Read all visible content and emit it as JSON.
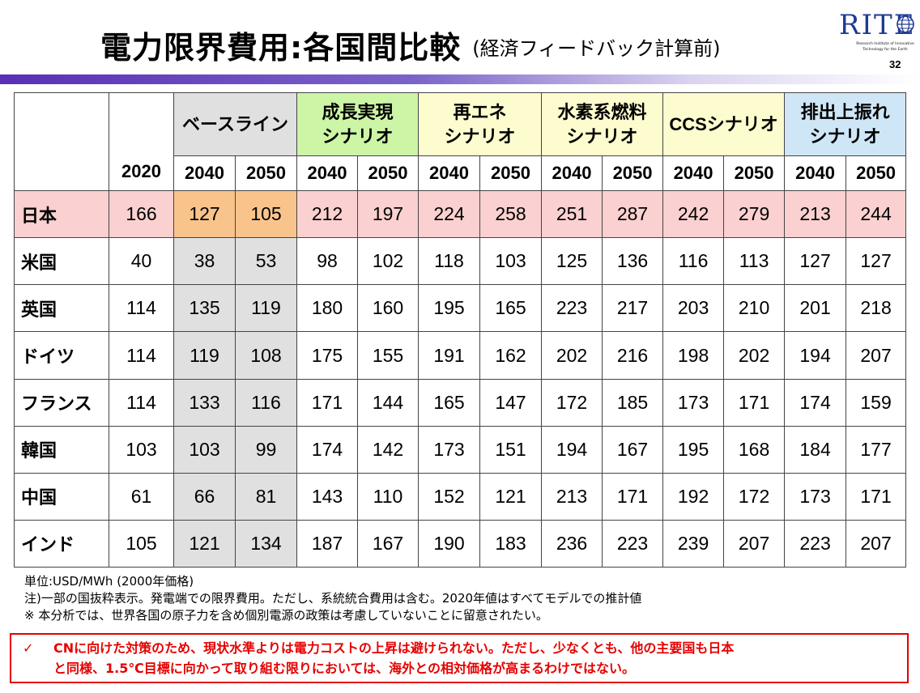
{
  "header": {
    "title": "電力限界費用:各国間比較",
    "subtitle": "(経済フィードバック計算前)",
    "logo_text": "RITE",
    "logo_lines": [
      "Research Institute of Innovative",
      "Technology for the Earth"
    ],
    "page_number": "32"
  },
  "table": {
    "year_2020": "2020",
    "scenarios": [
      {
        "label": "ベースライン",
        "color": "#e0e0e0"
      },
      {
        "label": "成長実現\nシナリオ",
        "color": "#ccf5a6"
      },
      {
        "label": "再エネ\nシナリオ",
        "color": "#fdfcce"
      },
      {
        "label": "水素系燃料\nシナリオ",
        "color": "#fdfcce"
      },
      {
        "label": "CCSシナリオ",
        "color": "#fdfcce"
      },
      {
        "label": "排出上振れ\nシナリオ",
        "color": "#cfe6f7"
      }
    ],
    "years": [
      "2040",
      "2050"
    ],
    "rows": [
      {
        "country": "日本",
        "values": [
          "166",
          "127",
          "105",
          "212",
          "197",
          "224",
          "258",
          "251",
          "287",
          "242",
          "279",
          "213",
          "244"
        ]
      },
      {
        "country": "米国",
        "values": [
          "40",
          "38",
          "53",
          "98",
          "102",
          "118",
          "103",
          "125",
          "136",
          "116",
          "113",
          "127",
          "127"
        ]
      },
      {
        "country": "英国",
        "values": [
          "114",
          "135",
          "119",
          "180",
          "160",
          "195",
          "165",
          "223",
          "217",
          "203",
          "210",
          "201",
          "218"
        ]
      },
      {
        "country": "ドイツ",
        "values": [
          "114",
          "119",
          "108",
          "175",
          "155",
          "191",
          "162",
          "202",
          "216",
          "198",
          "202",
          "194",
          "207"
        ]
      },
      {
        "country": "フランス",
        "values": [
          "114",
          "133",
          "116",
          "171",
          "144",
          "165",
          "147",
          "172",
          "185",
          "173",
          "171",
          "174",
          "159"
        ]
      },
      {
        "country": "韓国",
        "values": [
          "103",
          "103",
          "99",
          "174",
          "142",
          "173",
          "151",
          "194",
          "167",
          "195",
          "168",
          "184",
          "177"
        ]
      },
      {
        "country": "中国",
        "values": [
          "61",
          "66",
          "81",
          "143",
          "110",
          "152",
          "121",
          "213",
          "171",
          "192",
          "172",
          "173",
          "171"
        ]
      },
      {
        "country": "インド",
        "values": [
          "105",
          "121",
          "134",
          "187",
          "167",
          "190",
          "183",
          "236",
          "223",
          "239",
          "207",
          "223",
          "207"
        ]
      }
    ],
    "colors": {
      "japan_row": "#fbd0d0",
      "japan_baseline": "#f9c48b",
      "baseline": "#e0e0e0"
    }
  },
  "notes": [
    "単位:USD/MWh (2000年価格)",
    "注)一部の国抜粋表示。発電端での限界費用。ただし、系統統合費用は含む。2020年値はすべてモデルでの推計値",
    "※ 本分析では、世界各国の原子力を含め個別電源の政策は考慮していないことに留意されたい。"
  ],
  "callout": {
    "check": "✓",
    "line1": "CNに向けた対策のため、現状水準よりは電力コストの上昇は避けられない。ただし、少なくとも、他の主要国も日本",
    "line2": "と同様、1.5℃目標に向かって取り組む限りにおいては、海外との相対価格が高まるわけではない。",
    "color": "#e60000"
  }
}
